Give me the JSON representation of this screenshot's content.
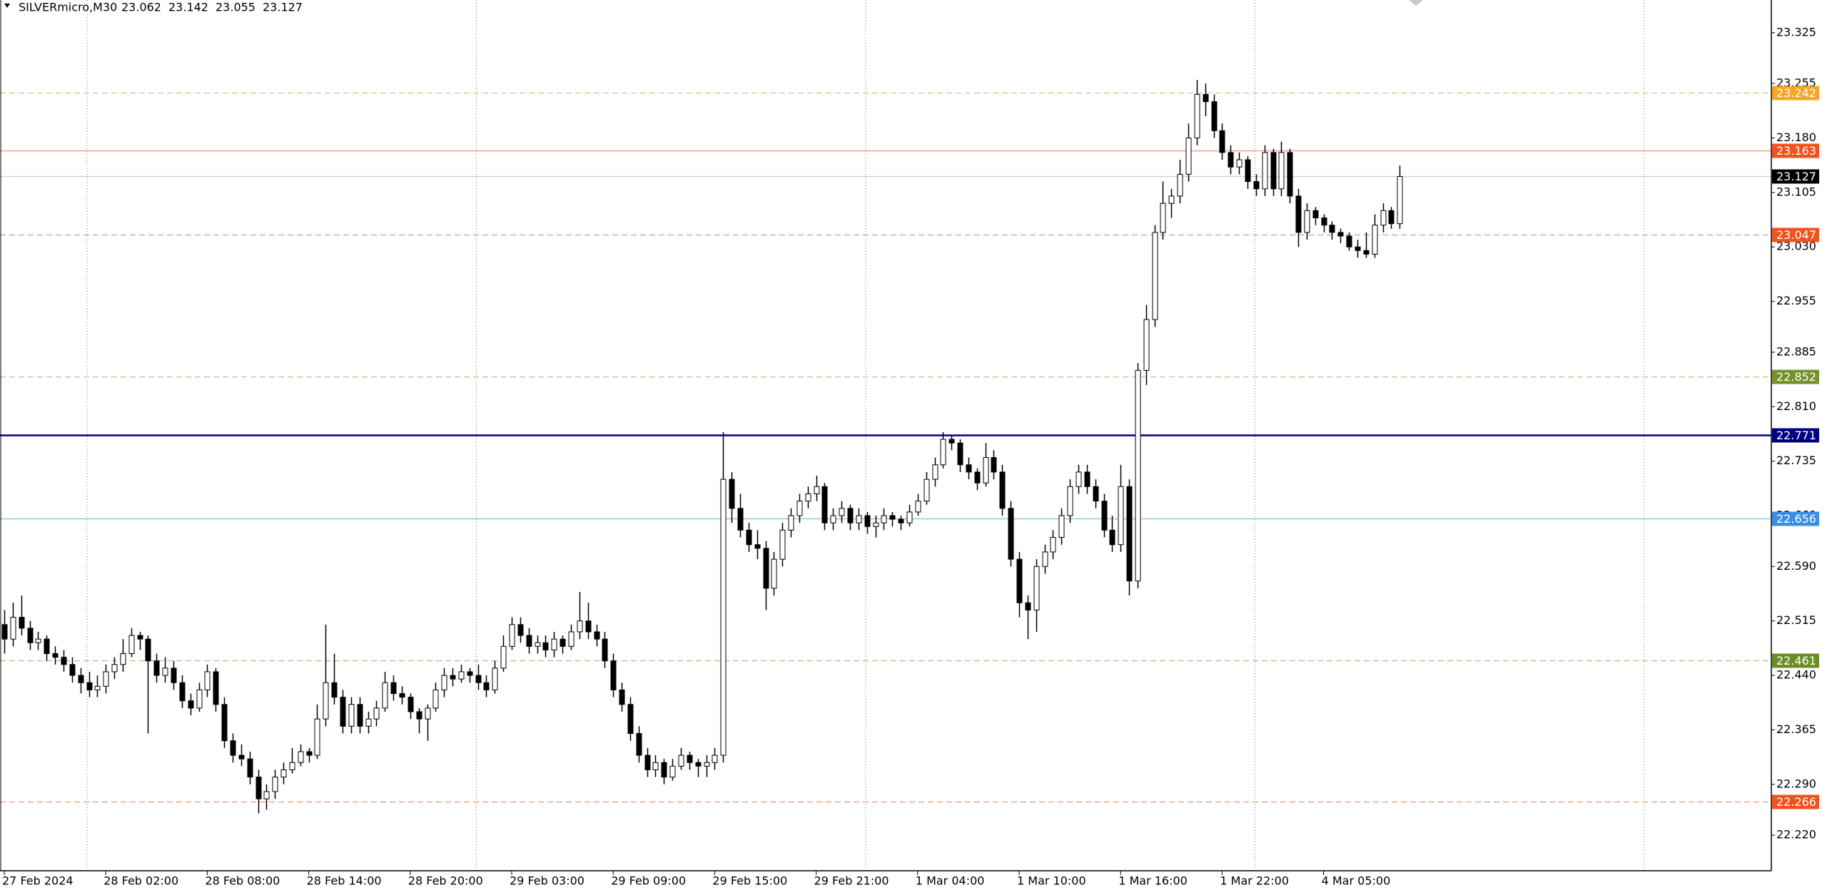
{
  "chart_data": {
    "type": "candlestick",
    "symbol": "SILVERmicro,M30",
    "ylim": [
      22.171,
      23.37
    ],
    "yticks": [
      23.325,
      23.255,
      {
        "value": 23.18,
        "label": "23.180"
      },
      23.105,
      {
        "value": 23.03,
        "label": "23.030"
      },
      22.955,
      22.885,
      {
        "value": 22.81,
        "label": "22.810"
      },
      22.735,
      {
        "value": 22.66,
        "label": "22.660"
      },
      {
        "value": 22.59,
        "label": "22.590"
      },
      22.515,
      {
        "value": 22.44,
        "label": "22.440"
      },
      22.365,
      {
        "value": 22.29,
        "label": "22.290"
      },
      {
        "value": 22.22,
        "label": "22.220"
      }
    ],
    "up_color": "#ffffff",
    "down_color": "#000000",
    "levels": [
      {
        "value": 23.242,
        "color": "#e8c79a",
        "label_color": "#f5a623",
        "dashed": true
      },
      {
        "value": 23.163,
        "color": "#f2a585",
        "label_color": "#f4511e",
        "dashed": false
      },
      {
        "value": 23.127,
        "color": "#c9d1d9",
        "label_color": "#000000",
        "dashed": false
      },
      {
        "value": 23.047,
        "color": "#dcae8e",
        "label_color": "#f4511e",
        "dashed": true
      },
      {
        "value": 22.852,
        "color": "#cfc79a",
        "label_color": "#76922a",
        "dashed": true
      },
      {
        "value": 22.771,
        "color": "#000080",
        "label_color": "#000080",
        "dashed": false
      },
      {
        "value": 22.656,
        "color": "#8ecae6",
        "label_color": "#3a8ee6",
        "dashed": false
      },
      {
        "value": 22.461,
        "color": "#c4c29a",
        "label_color": "#6b8e23",
        "dashed": true
      },
      {
        "value": 22.266,
        "color": "#eaa98a",
        "label_color": "#f4511e",
        "dashed": true
      }
    ],
    "categories": [
      "27 Feb 2024",
      null,
      null,
      null,
      null,
      null,
      null,
      null,
      null,
      null,
      null,
      null,
      "28 Feb 02:00",
      null,
      null,
      null,
      null,
      null,
      null,
      null,
      null,
      null,
      null,
      null,
      "28 Feb 08:00",
      null,
      null,
      null,
      null,
      null,
      null,
      null,
      null,
      null,
      null,
      null,
      "28 Feb 14:00",
      null,
      null,
      null,
      null,
      null,
      null,
      null,
      null,
      null,
      null,
      null,
      "28 Feb 20:00",
      null,
      null,
      null,
      null,
      null,
      null,
      null,
      null,
      null,
      null,
      null,
      "29 Feb 03:00",
      null,
      null,
      null,
      null,
      null,
      null,
      null,
      null,
      null,
      null,
      null,
      "29 Feb 09:00",
      null,
      null,
      null,
      null,
      null,
      null,
      null,
      null,
      null,
      null,
      null,
      "29 Feb 15:00",
      null,
      null,
      null,
      null,
      null,
      null,
      null,
      null,
      null,
      null,
      null,
      "29 Feb 21:00",
      null,
      null,
      null,
      null,
      null,
      null,
      null,
      null,
      null,
      null,
      null,
      "1 Mar 04:00",
      null,
      null,
      null,
      null,
      null,
      null,
      null,
      null,
      null,
      null,
      null,
      "1 Mar 10:00",
      null,
      null,
      null,
      null,
      null,
      null,
      null,
      null,
      null,
      null,
      null,
      "1 Mar 16:00",
      null,
      null,
      null,
      null,
      null,
      null,
      null,
      null,
      null,
      null,
      null,
      "1 Mar 22:00",
      null,
      null,
      null,
      null,
      null,
      null,
      null,
      null,
      null,
      null,
      null,
      "4 Mar 05:00",
      null,
      null,
      null,
      null,
      null,
      null,
      null,
      null,
      null
    ],
    "candles": [
      [
        22.51,
        22.53,
        22.47,
        22.49
      ],
      [
        22.49,
        22.54,
        22.48,
        22.52
      ],
      [
        22.52,
        22.55,
        22.495,
        22.505
      ],
      [
        22.505,
        22.515,
        22.475,
        22.485
      ],
      [
        22.485,
        22.5,
        22.475,
        22.49
      ],
      [
        22.49,
        22.495,
        22.46,
        22.47
      ],
      [
        22.47,
        22.48,
        22.455,
        22.465
      ],
      [
        22.465,
        22.475,
        22.445,
        22.455
      ],
      [
        22.455,
        22.465,
        22.43,
        22.44
      ],
      [
        22.44,
        22.45,
        22.415,
        22.43
      ],
      [
        22.43,
        22.445,
        22.41,
        22.42
      ],
      [
        22.42,
        22.44,
        22.41,
        22.425
      ],
      [
        22.425,
        22.455,
        22.415,
        22.445
      ],
      [
        22.445,
        22.465,
        22.435,
        22.455
      ],
      [
        22.455,
        22.49,
        22.445,
        22.47
      ],
      [
        22.47,
        22.505,
        22.465,
        22.495
      ],
      [
        22.495,
        22.5,
        22.475,
        22.49
      ],
      [
        22.49,
        22.495,
        22.36,
        22.46
      ],
      [
        22.46,
        22.47,
        22.43,
        22.44
      ],
      [
        22.44,
        22.465,
        22.43,
        22.45
      ],
      [
        22.45,
        22.46,
        22.42,
        22.43
      ],
      [
        22.43,
        22.44,
        22.395,
        22.405
      ],
      [
        22.405,
        22.415,
        22.385,
        22.395
      ],
      [
        22.395,
        22.43,
        22.39,
        22.42
      ],
      [
        22.42,
        22.455,
        22.41,
        22.445
      ],
      [
        22.445,
        22.45,
        22.39,
        22.4
      ],
      [
        22.4,
        22.41,
        22.34,
        22.35
      ],
      [
        22.35,
        22.36,
        22.32,
        22.33
      ],
      [
        22.33,
        22.345,
        22.315,
        22.325
      ],
      [
        22.325,
        22.335,
        22.29,
        22.3
      ],
      [
        22.3,
        22.31,
        22.25,
        22.27
      ],
      [
        22.27,
        22.29,
        22.255,
        22.28
      ],
      [
        22.28,
        22.31,
        22.27,
        22.3
      ],
      [
        22.3,
        22.32,
        22.29,
        22.31
      ],
      [
        22.31,
        22.34,
        22.305,
        22.32
      ],
      [
        22.32,
        22.345,
        22.315,
        22.335
      ],
      [
        22.335,
        22.34,
        22.32,
        22.33
      ],
      [
        22.33,
        22.4,
        22.325,
        22.38
      ],
      [
        22.38,
        22.51,
        22.37,
        22.43
      ],
      [
        22.43,
        22.47,
        22.4,
        22.41
      ],
      [
        22.41,
        22.42,
        22.36,
        22.37
      ],
      [
        22.37,
        22.41,
        22.36,
        22.4
      ],
      [
        22.4,
        22.41,
        22.36,
        22.37
      ],
      [
        22.37,
        22.39,
        22.36,
        22.38
      ],
      [
        22.38,
        22.405,
        22.37,
        22.395
      ],
      [
        22.395,
        22.445,
        22.39,
        22.43
      ],
      [
        22.43,
        22.44,
        22.405,
        22.415
      ],
      [
        22.415,
        22.425,
        22.4,
        22.41
      ],
      [
        22.41,
        22.415,
        22.38,
        22.39
      ],
      [
        22.39,
        22.395,
        22.36,
        22.38
      ],
      [
        22.38,
        22.4,
        22.35,
        22.395
      ],
      [
        22.395,
        22.43,
        22.39,
        22.42
      ],
      [
        22.42,
        22.45,
        22.41,
        22.44
      ],
      [
        22.44,
        22.45,
        22.425,
        22.435
      ],
      [
        22.435,
        22.455,
        22.43,
        22.445
      ],
      [
        22.445,
        22.45,
        22.43,
        22.44
      ],
      [
        22.44,
        22.455,
        22.42,
        22.43
      ],
      [
        22.43,
        22.44,
        22.41,
        22.42
      ],
      [
        22.42,
        22.46,
        22.415,
        22.45
      ],
      [
        22.45,
        22.495,
        22.445,
        22.48
      ],
      [
        22.48,
        22.52,
        22.475,
        22.51
      ],
      [
        22.51,
        22.52,
        22.485,
        22.495
      ],
      [
        22.495,
        22.505,
        22.47,
        22.48
      ],
      [
        22.48,
        22.495,
        22.47,
        22.485
      ],
      [
        22.485,
        22.495,
        22.465,
        22.475
      ],
      [
        22.475,
        22.5,
        22.465,
        22.49
      ],
      [
        22.49,
        22.495,
        22.47,
        22.48
      ],
      [
        22.48,
        22.51,
        22.475,
        22.5
      ],
      [
        22.5,
        22.555,
        22.49,
        22.515
      ],
      [
        22.515,
        22.54,
        22.49,
        22.5
      ],
      [
        22.5,
        22.51,
        22.48,
        22.49
      ],
      [
        22.49,
        22.5,
        22.45,
        22.46
      ],
      [
        22.46,
        22.47,
        22.41,
        22.42
      ],
      [
        22.42,
        22.43,
        22.39,
        22.4
      ],
      [
        22.4,
        22.41,
        22.35,
        22.36
      ],
      [
        22.36,
        22.37,
        22.32,
        22.33
      ],
      [
        22.33,
        22.34,
        22.3,
        22.31
      ],
      [
        22.31,
        22.33,
        22.3,
        22.32
      ],
      [
        22.32,
        22.325,
        22.29,
        22.3
      ],
      [
        22.3,
        22.325,
        22.295,
        22.315
      ],
      [
        22.315,
        22.34,
        22.31,
        22.33
      ],
      [
        22.33,
        22.335,
        22.31,
        22.32
      ],
      [
        22.32,
        22.325,
        22.3,
        22.315
      ],
      [
        22.315,
        22.33,
        22.3,
        22.32
      ],
      [
        22.32,
        22.34,
        22.31,
        22.33
      ],
      [
        22.33,
        22.775,
        22.32,
        22.71
      ],
      [
        22.71,
        22.72,
        22.65,
        22.67
      ],
      [
        22.67,
        22.69,
        22.63,
        22.64
      ],
      [
        22.64,
        22.65,
        22.61,
        22.62
      ],
      [
        22.62,
        22.64,
        22.6,
        22.615
      ],
      [
        22.615,
        22.625,
        22.53,
        22.56
      ],
      [
        22.56,
        22.61,
        22.55,
        22.6
      ],
      [
        22.6,
        22.65,
        22.59,
        22.64
      ],
      [
        22.64,
        22.67,
        22.63,
        22.66
      ],
      [
        22.66,
        22.69,
        22.65,
        22.68
      ],
      [
        22.68,
        22.7,
        22.67,
        22.69
      ],
      [
        22.69,
        22.715,
        22.68,
        22.7
      ],
      [
        22.7,
        22.705,
        22.64,
        22.65
      ],
      [
        22.65,
        22.67,
        22.64,
        22.66
      ],
      [
        22.66,
        22.68,
        22.65,
        22.67
      ],
      [
        22.67,
        22.675,
        22.64,
        22.65
      ],
      [
        22.65,
        22.67,
        22.64,
        22.66
      ],
      [
        22.66,
        22.665,
        22.635,
        22.645
      ],
      [
        22.645,
        22.66,
        22.63,
        22.65
      ],
      [
        22.65,
        22.67,
        22.64,
        22.66
      ],
      [
        22.66,
        22.665,
        22.645,
        22.655
      ],
      [
        22.655,
        22.66,
        22.64,
        22.65
      ],
      [
        22.65,
        22.675,
        22.645,
        22.665
      ],
      [
        22.665,
        22.69,
        22.66,
        22.68
      ],
      [
        22.68,
        22.72,
        22.675,
        22.71
      ],
      [
        22.71,
        22.74,
        22.7,
        22.73
      ],
      [
        22.73,
        22.775,
        22.725,
        22.765
      ],
      [
        22.765,
        22.77,
        22.75,
        22.76
      ],
      [
        22.76,
        22.765,
        22.72,
        22.73
      ],
      [
        22.73,
        22.74,
        22.71,
        22.72
      ],
      [
        22.72,
        22.725,
        22.695,
        22.705
      ],
      [
        22.705,
        22.76,
        22.7,
        22.74
      ],
      [
        22.74,
        22.75,
        22.71,
        22.72
      ],
      [
        22.72,
        22.73,
        22.66,
        22.67
      ],
      [
        22.67,
        22.68,
        22.59,
        22.6
      ],
      [
        22.6,
        22.61,
        22.52,
        22.54
      ],
      [
        22.54,
        22.55,
        22.49,
        22.53
      ],
      [
        22.53,
        22.6,
        22.5,
        22.59
      ],
      [
        22.59,
        22.62,
        22.58,
        22.61
      ],
      [
        22.61,
        22.64,
        22.6,
        22.63
      ],
      [
        22.63,
        22.67,
        22.62,
        22.66
      ],
      [
        22.66,
        22.71,
        22.65,
        22.7
      ],
      [
        22.7,
        22.73,
        22.69,
        22.72
      ],
      [
        22.72,
        22.73,
        22.69,
        22.7
      ],
      [
        22.7,
        22.71,
        22.67,
        22.68
      ],
      [
        22.68,
        22.69,
        22.63,
        22.64
      ],
      [
        22.64,
        22.66,
        22.61,
        22.62
      ],
      [
        22.62,
        22.73,
        22.61,
        22.7
      ],
      [
        22.7,
        22.71,
        22.55,
        22.57
      ],
      [
        22.57,
        22.87,
        22.56,
        22.86
      ],
      [
        22.86,
        22.95,
        22.84,
        22.93
      ],
      [
        22.93,
        23.06,
        22.92,
        23.05
      ],
      [
        23.05,
        23.12,
        23.04,
        23.09
      ],
      [
        23.09,
        23.11,
        23.07,
        23.1
      ],
      [
        23.1,
        23.15,
        23.09,
        23.13
      ],
      [
        23.13,
        23.2,
        23.12,
        23.18
      ],
      [
        23.18,
        23.26,
        23.17,
        23.24
      ],
      [
        23.24,
        23.255,
        23.21,
        23.23
      ],
      [
        23.23,
        23.24,
        23.18,
        23.19
      ],
      [
        23.19,
        23.2,
        23.15,
        23.16
      ],
      [
        23.16,
        23.17,
        23.13,
        23.14
      ],
      [
        23.14,
        23.16,
        23.13,
        23.15
      ],
      [
        23.15,
        23.155,
        23.11,
        23.12
      ],
      [
        23.12,
        23.13,
        23.1,
        23.11
      ],
      [
        23.11,
        23.17,
        23.1,
        23.16
      ],
      [
        23.16,
        23.165,
        23.1,
        23.11
      ],
      [
        23.11,
        23.175,
        23.1,
        23.16
      ],
      [
        23.16,
        23.165,
        23.09,
        23.1
      ],
      [
        23.1,
        23.11,
        23.03,
        23.05
      ],
      [
        23.05,
        23.09,
        23.04,
        23.08
      ],
      [
        23.08,
        23.085,
        23.06,
        23.07
      ],
      [
        23.07,
        23.075,
        23.05,
        23.06
      ],
      [
        23.06,
        23.065,
        23.04,
        23.05
      ],
      [
        23.05,
        23.055,
        23.035,
        23.045
      ],
      [
        23.045,
        23.05,
        23.025,
        23.03
      ],
      [
        23.03,
        23.04,
        23.015,
        23.025
      ],
      [
        23.025,
        23.05,
        23.015,
        23.02
      ],
      [
        23.02,
        23.075,
        23.015,
        23.06
      ],
      [
        23.06,
        23.09,
        23.05,
        23.08
      ],
      [
        23.08,
        23.085,
        23.055,
        23.062
      ],
      [
        23.062,
        23.142,
        23.055,
        23.127
      ]
    ]
  }
}
